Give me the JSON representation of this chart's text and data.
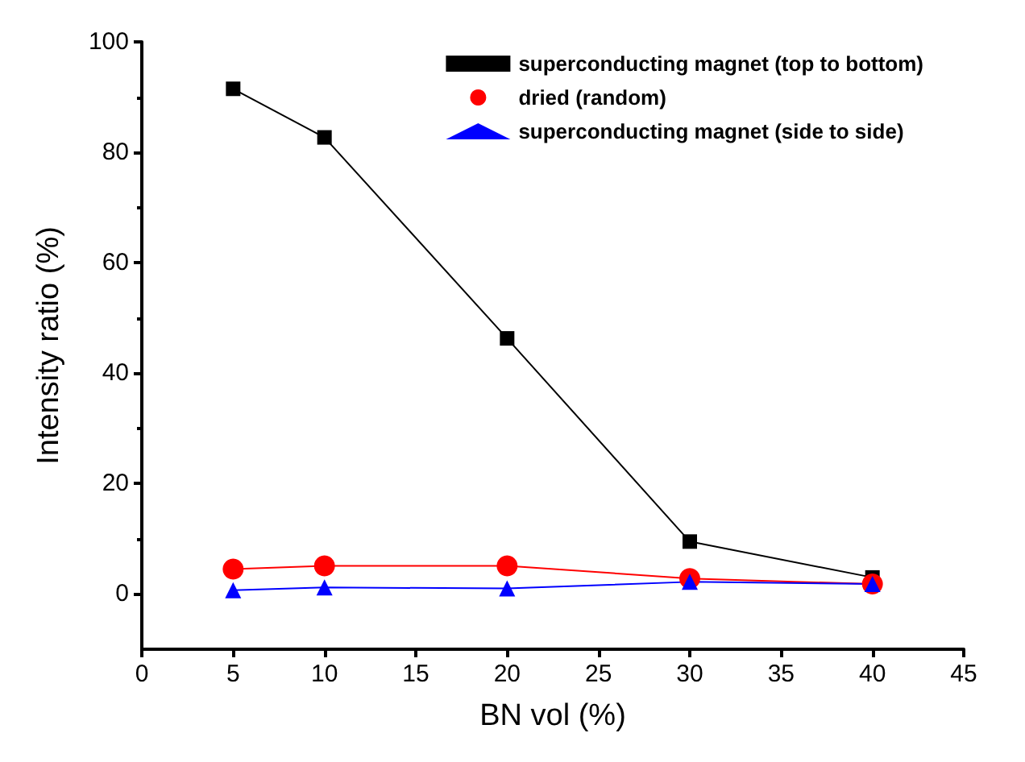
{
  "chart_data": {
    "type": "line",
    "xlabel": "BN vol (%)",
    "ylabel": "Intensity ratio (%)",
    "x": [
      5,
      10,
      20,
      30,
      40
    ],
    "series": [
      {
        "name": "superconducting magnet (top to bottom)",
        "color": "#000000",
        "marker": "square",
        "values": [
          91.5,
          82.7,
          46.3,
          9.5,
          3
        ]
      },
      {
        "name": "dried (random)",
        "color": "#ff0000",
        "marker": "circle",
        "values": [
          4.5,
          5.1,
          5.1,
          2.8,
          1.8
        ]
      },
      {
        "name": "superconducting magnet (side to side)",
        "color": "#0000ff",
        "marker": "triangle",
        "values": [
          0.7,
          1.2,
          1.0,
          2.2,
          1.8
        ]
      }
    ],
    "xlim": [
      0,
      45
    ],
    "xticks": [
      0,
      5,
      10,
      15,
      20,
      25,
      30,
      35,
      40,
      45
    ],
    "ylim": [
      -10,
      100
    ],
    "yticks": [
      0,
      20,
      40,
      60,
      80,
      100
    ],
    "grid": false,
    "legend": "top right"
  }
}
